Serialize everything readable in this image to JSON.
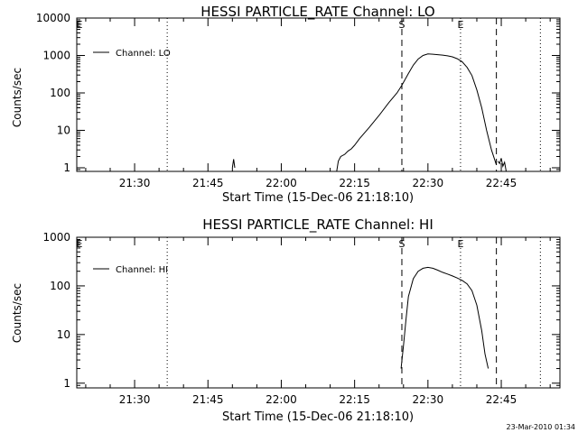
{
  "footer": {
    "timestamp": "23-Mar-2010 01:34"
  },
  "chart_data": [
    {
      "type": "line",
      "title": "HESSI PARTICLE_RATE Channel: LO",
      "xlabel": "Start Time (15-Dec-06 21:18:10)",
      "ylabel": "Counts/sec",
      "yscale": "log",
      "ylim": [
        0.8,
        10000
      ],
      "ytick_values": [
        1,
        10,
        100,
        1000,
        10000
      ],
      "ytick_labels": [
        "1",
        "10",
        "100",
        "1000",
        "10000"
      ],
      "xlim": [
        "21:18:10",
        "22:57:00"
      ],
      "xtick_values": [
        "21:30",
        "21:45",
        "22:00",
        "22:15",
        "22:30",
        "22:45"
      ],
      "xtick_labels": [
        "21:30",
        "21:45",
        "22:00",
        "22:15",
        "22:30",
        "22:45"
      ],
      "legend": {
        "position": "top-left",
        "entries": [
          "Channel: LO"
        ]
      },
      "grid": false,
      "markers": [
        {
          "time": "21:18:10",
          "label": "E",
          "style": "none"
        },
        {
          "time": "21:36:40",
          "label": "",
          "style": "dotted"
        },
        {
          "time": "22:24:40",
          "label": "S",
          "style": "dashed"
        },
        {
          "time": "22:36:40",
          "label": "E",
          "style": "dotted"
        },
        {
          "time": "22:44:00",
          "label": "",
          "style": "dashed"
        },
        {
          "time": "22:53:00",
          "label": "",
          "style": "dotted"
        }
      ],
      "series": [
        {
          "name": "Channel: LO",
          "segments": [
            {
              "x": [
                "21:50:00",
                "21:50:15",
                "21:50:30"
              ],
              "y": [
                1,
                1.7,
                1
              ]
            },
            {
              "x": [
                "22:11:20",
                "22:11:40",
                "22:12:10",
                "22:13:00",
                "22:13:40",
                "22:14:20",
                "22:15:00",
                "22:16:00",
                "22:18:00",
                "22:20:00",
                "22:22:00",
                "22:23:40",
                "22:24:40",
                "22:26:00",
                "22:27:00",
                "22:28:00",
                "22:29:00",
                "22:30:00",
                "22:31:00",
                "22:32:00",
                "22:33:00",
                "22:34:00",
                "22:35:00",
                "22:36:00",
                "22:37:00",
                "22:38:00",
                "22:39:00",
                "22:40:00",
                "22:41:00",
                "22:42:00",
                "22:43:00",
                "22:44:00"
              ],
              "y": [
                0.8,
                1.5,
                2,
                2.3,
                2.8,
                3.2,
                4,
                6,
                12,
                25,
                55,
                100,
                160,
                330,
                550,
                800,
                1000,
                1100,
                1080,
                1050,
                1020,
                980,
                920,
                820,
                680,
                480,
                290,
                120,
                40,
                10,
                3,
                1.2
              ]
            },
            {
              "x": [
                "22:44:20",
                "22:44:40",
                "22:45:00",
                "22:45:20",
                "22:45:40",
                "22:46:00"
              ],
              "y": [
                1.5,
                1.3,
                1.8,
                1.1,
                1.4,
                0.8
              ]
            }
          ]
        }
      ]
    },
    {
      "type": "line",
      "title": "HESSI PARTICLE_RATE Channel: HI",
      "xlabel": "Start Time (15-Dec-06 21:18:10)",
      "ylabel": "Counts/sec",
      "yscale": "log",
      "ylim": [
        0.8,
        1000
      ],
      "ytick_values": [
        1,
        10,
        100,
        1000
      ],
      "ytick_labels": [
        "1",
        "10",
        "100",
        "1000"
      ],
      "xlim": [
        "21:18:10",
        "22:57:00"
      ],
      "xtick_values": [
        "21:30",
        "21:45",
        "22:00",
        "22:15",
        "22:30",
        "22:45"
      ],
      "xtick_labels": [
        "21:30",
        "21:45",
        "22:00",
        "22:15",
        "22:30",
        "22:45"
      ],
      "legend": {
        "position": "top-left",
        "entries": [
          "Channel: HI"
        ]
      },
      "grid": false,
      "markers": [
        {
          "time": "21:18:10",
          "label": "E",
          "style": "none"
        },
        {
          "time": "21:36:40",
          "label": "",
          "style": "dotted"
        },
        {
          "time": "22:24:40",
          "label": "S",
          "style": "dashed"
        },
        {
          "time": "22:36:40",
          "label": "E",
          "style": "dotted"
        },
        {
          "time": "22:44:00",
          "label": "",
          "style": "dashed"
        },
        {
          "time": "22:53:00",
          "label": "",
          "style": "dotted"
        }
      ],
      "series": [
        {
          "name": "Channel: HI",
          "segments": [
            {
              "x": [
                "22:24:30",
                "22:25:00",
                "22:25:30",
                "22:26:00",
                "22:27:00",
                "22:28:00",
                "22:29:00",
                "22:30:00",
                "22:31:00",
                "22:32:00",
                "22:33:00",
                "22:34:00",
                "22:35:00",
                "22:36:00",
                "22:37:00",
                "22:38:00",
                "22:39:00",
                "22:40:00",
                "22:41:00",
                "22:41:40",
                "22:42:20"
              ],
              "y": [
                2,
                6,
                20,
                60,
                140,
                200,
                230,
                240,
                230,
                210,
                190,
                175,
                160,
                145,
                130,
                110,
                80,
                40,
                12,
                4,
                2
              ]
            }
          ]
        }
      ]
    }
  ]
}
